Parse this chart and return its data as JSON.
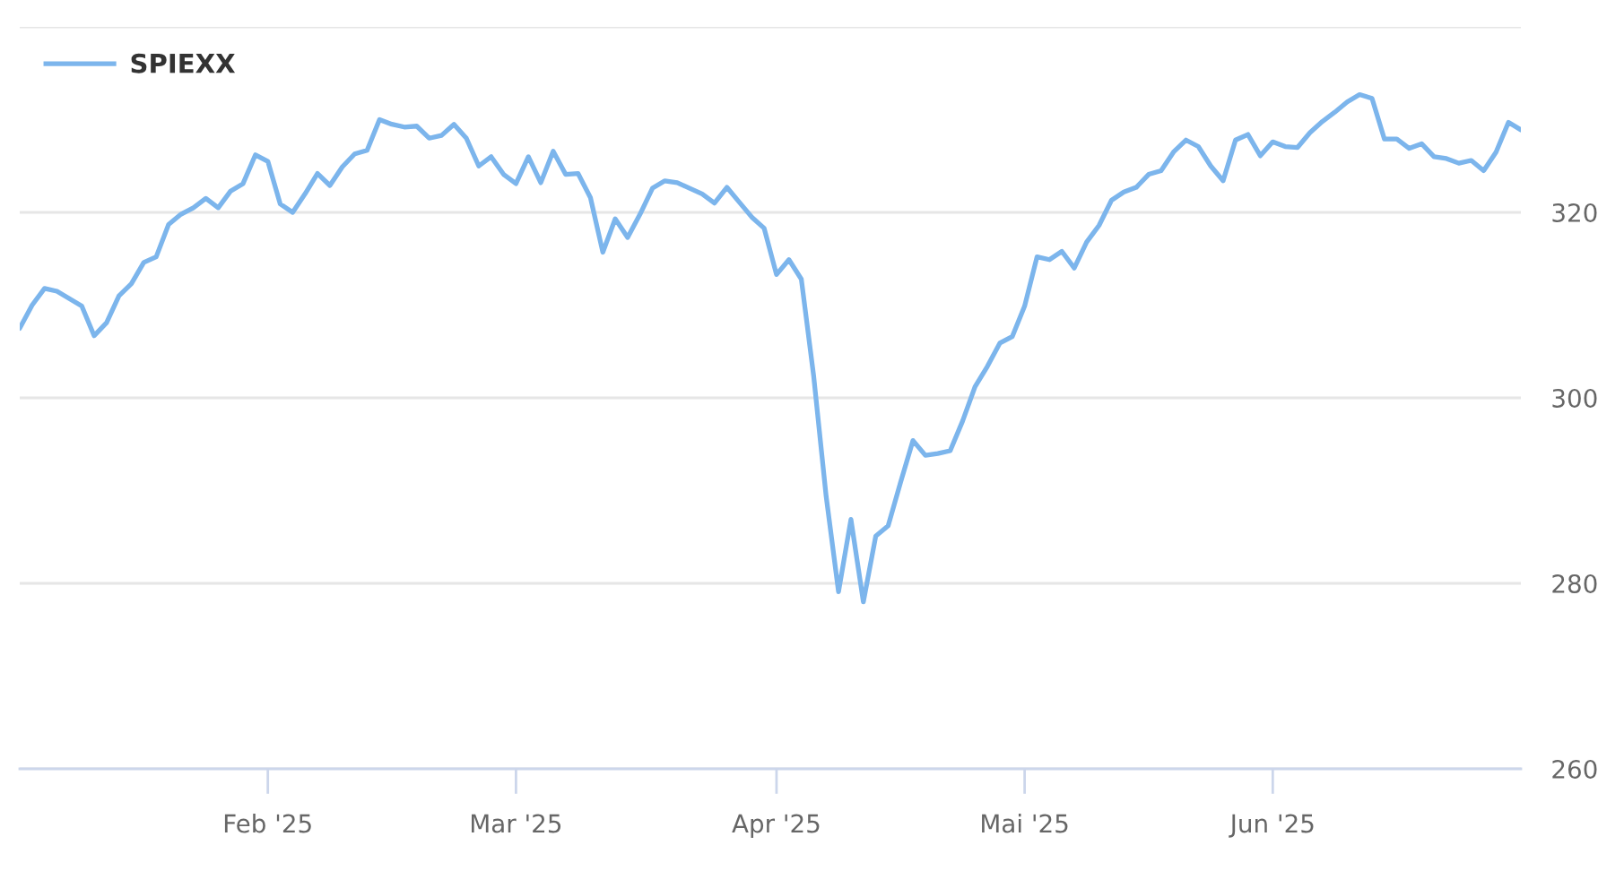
{
  "chart_data": {
    "type": "line",
    "categories": [
      null,
      null,
      null,
      null,
      null,
      null,
      null,
      null,
      null,
      null,
      null,
      null,
      null,
      null,
      null,
      null,
      null,
      null,
      null,
      null,
      "Feb '25",
      null,
      null,
      null,
      null,
      null,
      null,
      null,
      null,
      null,
      null,
      null,
      null,
      null,
      null,
      null,
      null,
      null,
      null,
      null,
      "Mar '25",
      null,
      null,
      null,
      null,
      null,
      null,
      null,
      null,
      null,
      null,
      null,
      null,
      null,
      null,
      null,
      null,
      null,
      null,
      null,
      null,
      "Apr '25",
      null,
      null,
      null,
      null,
      null,
      null,
      null,
      null,
      null,
      null,
      null,
      null,
      null,
      null,
      null,
      null,
      null,
      null,
      null,
      "Mai '25",
      null,
      null,
      null,
      null,
      null,
      null,
      null,
      null,
      null,
      null,
      null,
      null,
      null,
      null,
      null,
      null,
      null,
      null,
      null,
      "Jun '25",
      null,
      null,
      null,
      null,
      null,
      null,
      null,
      null,
      null,
      null,
      null,
      null,
      null,
      null,
      null,
      null,
      null,
      null,
      null,
      null
    ],
    "series": [
      {
        "name": "SPIEXX",
        "color": "#7cb5ec",
        "values": [
          307.5,
          310.0,
          311.8,
          311.5,
          310.7,
          309.9,
          306.7,
          308.1,
          311.0,
          312.3,
          314.6,
          315.2,
          318.7,
          319.8,
          320.5,
          321.5,
          320.5,
          322.3,
          323.1,
          326.2,
          325.5,
          320.9,
          320.0,
          322.0,
          324.2,
          322.9,
          324.9,
          326.3,
          326.7,
          330.0,
          329.5,
          329.2,
          329.3,
          328.0,
          328.3,
          329.5,
          328.0,
          325.0,
          326.0,
          324.1,
          323.1,
          326.0,
          323.2,
          326.6,
          324.1,
          324.2,
          321.6,
          315.7,
          319.3,
          317.3,
          319.8,
          322.6,
          323.4,
          323.2,
          322.6,
          322.0,
          321.0,
          322.7,
          321.1,
          319.5,
          318.3,
          313.3,
          314.9,
          312.8,
          302.3,
          289.4,
          279.1,
          286.9,
          278.0,
          285.1,
          286.2,
          290.9,
          295.4,
          293.8,
          294.0,
          294.3,
          297.5,
          301.2,
          303.4,
          305.9,
          306.6,
          309.9,
          315.2,
          314.9,
          315.8,
          314.0,
          316.8,
          318.6,
          321.3,
          322.2,
          322.7,
          324.1,
          324.5,
          326.5,
          327.8,
          327.1,
          325.0,
          323.4,
          327.8,
          328.4,
          326.1,
          327.6,
          327.1,
          327.0,
          328.6,
          329.8,
          330.8,
          331.9,
          332.7,
          332.3,
          327.9,
          327.9,
          326.9,
          327.4,
          326.0,
          325.8,
          325.3,
          325.6,
          324.5,
          326.5,
          329.7,
          328.9
        ]
      }
    ],
    "ylim": [
      260,
      340
    ],
    "yticks": [
      260,
      280,
      300,
      320,
      {
        "value": 340,
        "label": null
      }
    ],
    "grid": "y",
    "legend": "top left",
    "marker": "none",
    "line_style": "solid"
  }
}
